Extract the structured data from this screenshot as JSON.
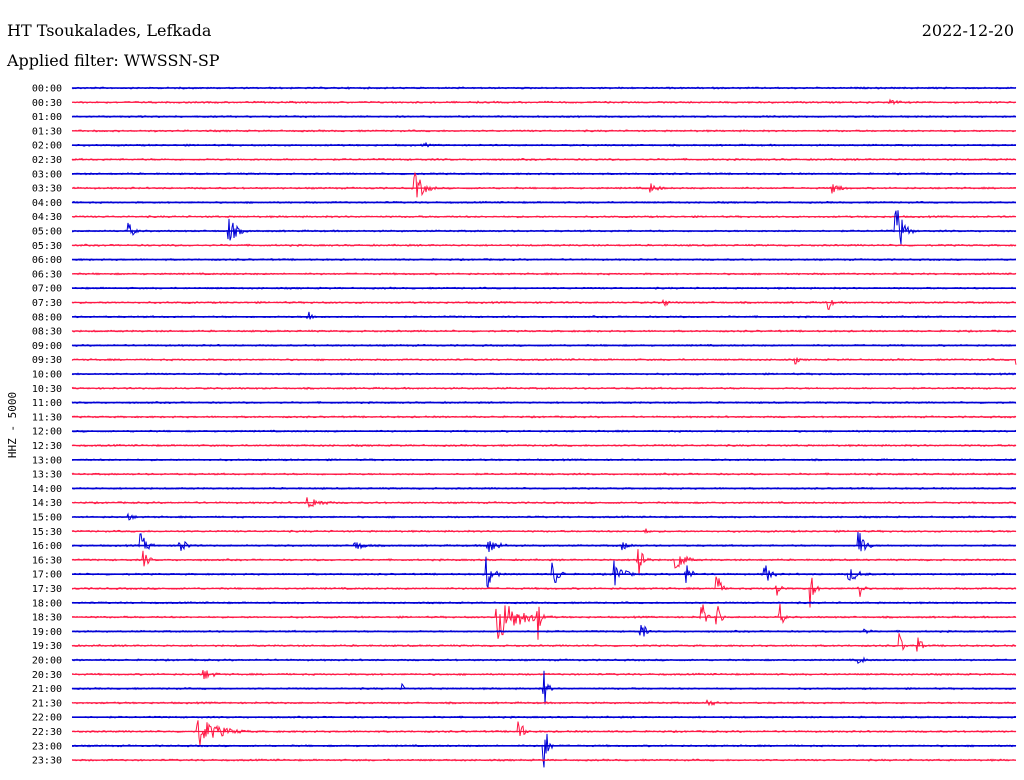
{
  "header": {
    "station": "HT Tsoukalades, Lefkada",
    "filter": "Applied filter: WWSSN-SP",
    "date": "2022-12-20"
  },
  "colors": {
    "even_row": "#0000d6",
    "odd_row": "#ff1744",
    "background": "#ffffff",
    "text": "#000000"
  },
  "chart_data": {
    "type": "line",
    "title": "HT Tsoukalades, Lefkada",
    "subtitle": "Applied filter: WWSSN-SP",
    "date": "2022-12-20",
    "ylabel": "HHZ - 5000",
    "xlabel": "",
    "row_minutes": 30,
    "rows": [
      "00:00",
      "00:30",
      "01:00",
      "01:30",
      "02:00",
      "02:30",
      "03:00",
      "03:30",
      "04:00",
      "04:30",
      "05:00",
      "05:30",
      "06:00",
      "06:30",
      "07:00",
      "07:30",
      "08:00",
      "08:30",
      "09:00",
      "09:30",
      "10:00",
      "10:30",
      "11:00",
      "11:30",
      "12:00",
      "12:30",
      "13:00",
      "13:30",
      "14:00",
      "14:30",
      "15:00",
      "15:30",
      "16:00",
      "16:30",
      "17:00",
      "17:30",
      "18:00",
      "18:30",
      "19:00",
      "19:30",
      "20:00",
      "20:30",
      "21:00",
      "21:30",
      "22:00",
      "22:30",
      "23:00",
      "23:30"
    ],
    "series_colors": [
      "#0000d6",
      "#ff1744"
    ],
    "events": [
      {
        "row": 1,
        "minute": 26.0,
        "amp": 3,
        "dur": 1.2
      },
      {
        "row": 4,
        "minute": 11.2,
        "amp": 3,
        "dur": 0.6
      },
      {
        "row": 7,
        "minute": 10.9,
        "amp": 16,
        "dur": 0.8
      },
      {
        "row": 7,
        "minute": 18.4,
        "amp": 5,
        "dur": 0.8
      },
      {
        "row": 7,
        "minute": 24.2,
        "amp": 6,
        "dur": 0.8
      },
      {
        "row": 10,
        "minute": 1.8,
        "amp": 9,
        "dur": 0.5
      },
      {
        "row": 10,
        "minute": 5.0,
        "amp": 14,
        "dur": 0.7
      },
      {
        "row": 10,
        "minute": 26.2,
        "amp": 30,
        "dur": 0.6
      },
      {
        "row": 15,
        "minute": 18.8,
        "amp": 8,
        "dur": 0.3
      },
      {
        "row": 15,
        "minute": 24.0,
        "amp": 14,
        "dur": 0.3
      },
      {
        "row": 16,
        "minute": 7.5,
        "amp": 7,
        "dur": 0.5
      },
      {
        "row": 19,
        "minute": 23.0,
        "amp": 5,
        "dur": 0.3
      },
      {
        "row": 19,
        "minute": 30.0,
        "amp": 8,
        "dur": 0.1
      },
      {
        "row": 29,
        "minute": 7.5,
        "amp": 7,
        "dur": 1.2
      },
      {
        "row": 30,
        "minute": 1.8,
        "amp": 4,
        "dur": 0.6
      },
      {
        "row": 31,
        "minute": 18.2,
        "amp": 4,
        "dur": 0.4
      },
      {
        "row": 32,
        "minute": 2.2,
        "amp": 12,
        "dur": 0.6
      },
      {
        "row": 32,
        "minute": 3.4,
        "amp": 11,
        "dur": 0.6
      },
      {
        "row": 32,
        "minute": 9.0,
        "amp": 5,
        "dur": 1.0
      },
      {
        "row": 32,
        "minute": 13.2,
        "amp": 9,
        "dur": 1.0
      },
      {
        "row": 32,
        "minute": 17.5,
        "amp": 5,
        "dur": 0.8
      },
      {
        "row": 32,
        "minute": 25.0,
        "amp": 20,
        "dur": 0.5
      },
      {
        "row": 33,
        "minute": 2.3,
        "amp": 10,
        "dur": 0.4
      },
      {
        "row": 33,
        "minute": 18.0,
        "amp": 26,
        "dur": 0.4
      },
      {
        "row": 33,
        "minute": 19.2,
        "amp": 14,
        "dur": 0.7
      },
      {
        "row": 34,
        "minute": 13.2,
        "amp": 18,
        "dur": 0.5
      },
      {
        "row": 34,
        "minute": 15.3,
        "amp": 16,
        "dur": 0.5
      },
      {
        "row": 34,
        "minute": 17.2,
        "amp": 16,
        "dur": 0.8
      },
      {
        "row": 34,
        "minute": 19.5,
        "amp": 12,
        "dur": 0.5
      },
      {
        "row": 34,
        "minute": 22.0,
        "amp": 12,
        "dur": 0.6
      },
      {
        "row": 34,
        "minute": 24.7,
        "amp": 8,
        "dur": 1.0
      },
      {
        "row": 35,
        "minute": 20.5,
        "amp": 22,
        "dur": 0.3
      },
      {
        "row": 35,
        "minute": 22.4,
        "amp": 14,
        "dur": 0.3
      },
      {
        "row": 35,
        "minute": 23.5,
        "amp": 20,
        "dur": 0.3
      },
      {
        "row": 35,
        "minute": 25.0,
        "amp": 18,
        "dur": 0.3
      },
      {
        "row": 37,
        "minute": 13.5,
        "amp": 26,
        "dur": 1.8
      },
      {
        "row": 37,
        "minute": 14.8,
        "amp": 30,
        "dur": 0.2
      },
      {
        "row": 37,
        "minute": 20.0,
        "amp": 22,
        "dur": 0.3
      },
      {
        "row": 37,
        "minute": 20.5,
        "amp": 18,
        "dur": 0.3
      },
      {
        "row": 37,
        "minute": 22.5,
        "amp": 14,
        "dur": 0.3
      },
      {
        "row": 38,
        "minute": 18.1,
        "amp": 14,
        "dur": 0.3
      },
      {
        "row": 38,
        "minute": 25.2,
        "amp": 3,
        "dur": 0.7
      },
      {
        "row": 39,
        "minute": 26.3,
        "amp": 14,
        "dur": 0.3
      },
      {
        "row": 39,
        "minute": 26.9,
        "amp": 12,
        "dur": 0.3
      },
      {
        "row": 40,
        "minute": 25.0,
        "amp": 4,
        "dur": 0.8
      },
      {
        "row": 41,
        "minute": 4.2,
        "amp": 6,
        "dur": 0.9
      },
      {
        "row": 42,
        "minute": 10.5,
        "amp": 5,
        "dur": 0.3
      },
      {
        "row": 42,
        "minute": 15.0,
        "amp": 22,
        "dur": 0.3
      },
      {
        "row": 43,
        "minute": 20.2,
        "amp": 4,
        "dur": 0.8
      },
      {
        "row": 45,
        "minute": 4.0,
        "amp": 16,
        "dur": 1.8
      },
      {
        "row": 45,
        "minute": 14.2,
        "amp": 22,
        "dur": 0.3
      },
      {
        "row": 46,
        "minute": 15.0,
        "amp": 32,
        "dur": 0.3
      }
    ]
  }
}
